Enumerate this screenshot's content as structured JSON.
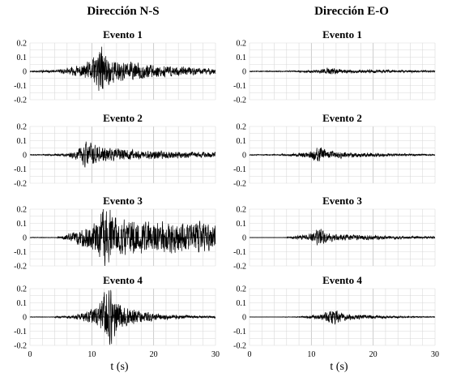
{
  "chart_data": {
    "type": "line",
    "xlabel": "t (s)",
    "xlim": [
      0,
      30
    ],
    "ylim": [
      -0.2,
      0.2
    ],
    "x_ticks": [
      "0",
      "10",
      "20",
      "30"
    ],
    "y_ticks": [
      "0.2",
      "0.1",
      "0",
      "-0.1",
      "-0.2"
    ],
    "grid": true,
    "columns": [
      {
        "title": "Dirección N-S",
        "panels": [
          {
            "title": "Evento 1",
            "onset": 1.0,
            "peak_time": 11.5,
            "peak_amp": 0.15,
            "noise": 0.004,
            "decay": 0.07,
            "rise": 3.5,
            "seed": 11
          },
          {
            "title": "Evento 2",
            "onset": 2.0,
            "peak_time": 9.5,
            "peak_amp": 0.09,
            "noise": 0.003,
            "decay": 0.05,
            "rise": 3.0,
            "seed": 23
          },
          {
            "title": "Evento 3",
            "onset": 4.5,
            "peak_time": 12.3,
            "peak_amp": 0.2,
            "noise": 0.002,
            "decay": 0.01,
            "rise": 1.5,
            "seed": 37
          },
          {
            "title": "Evento 4",
            "onset": 4.0,
            "peak_time": 12.8,
            "peak_amp": 0.18,
            "noise": 0.002,
            "decay": 0.16,
            "rise": 3.5,
            "seed": 41
          }
        ]
      },
      {
        "title": "Dirección E-O",
        "panels": [
          {
            "title": "Evento 1",
            "onset": 1.0,
            "peak_time": 13.0,
            "peak_amp": 0.025,
            "noise": 0.003,
            "decay": 0.05,
            "rise": 4.0,
            "seed": 53
          },
          {
            "title": "Evento 2",
            "onset": 1.0,
            "peak_time": 11.2,
            "peak_amp": 0.045,
            "noise": 0.003,
            "decay": 0.08,
            "rise": 3.0,
            "seed": 67
          },
          {
            "title": "Evento 3",
            "onset": 5.5,
            "peak_time": 11.3,
            "peak_amp": 0.05,
            "noise": 0.001,
            "decay": 0.07,
            "rise": 1.0,
            "seed": 71
          },
          {
            "title": "Evento 4",
            "onset": 5.0,
            "peak_time": 13.5,
            "peak_amp": 0.05,
            "noise": 0.001,
            "decay": 0.12,
            "rise": 3.0,
            "seed": 89
          }
        ]
      }
    ]
  }
}
